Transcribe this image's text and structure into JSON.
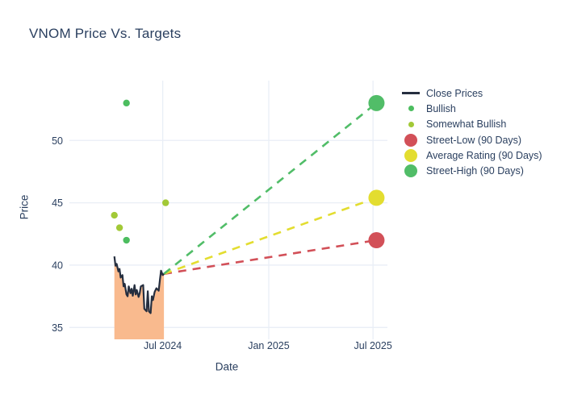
{
  "chart_data": {
    "type": "line+scatter",
    "title": "VNOM Price Vs. Targets",
    "xlabel": "Date",
    "ylabel": "Price",
    "background": "#ffffff",
    "text_color": "#2a3f5f",
    "grid_color": "#e9eef6",
    "grid": true,
    "legend_position": "right",
    "x_ticks": [
      {
        "label": "Jul 2024",
        "date": "2024-07-01"
      },
      {
        "label": "Jan 2025",
        "date": "2025-01-01"
      },
      {
        "label": "Jul 2025",
        "date": "2025-07-01"
      }
    ],
    "y_ticks": [
      35,
      40,
      45,
      50
    ],
    "x_range": [
      "2024-01-21",
      "2025-07-26"
    ],
    "y_range": [
      34.05,
      54.8
    ],
    "close_prices": {
      "name": "Close Prices",
      "line_color": "#252e3f",
      "fill_color": "#f9ba8e",
      "dates": [
        "2024-04-08",
        "2024-04-10",
        "2024-04-12",
        "2024-04-15",
        "2024-04-17",
        "2024-04-19",
        "2024-04-22",
        "2024-04-24",
        "2024-04-26",
        "2024-04-29",
        "2024-05-01",
        "2024-05-03",
        "2024-05-06",
        "2024-05-08",
        "2024-05-10",
        "2024-05-13",
        "2024-05-15",
        "2024-05-17",
        "2024-05-20",
        "2024-05-22",
        "2024-05-24",
        "2024-05-28",
        "2024-05-30",
        "2024-06-03",
        "2024-06-05",
        "2024-06-07",
        "2024-06-10",
        "2024-06-12",
        "2024-06-14",
        "2024-06-17",
        "2024-06-20",
        "2024-06-24",
        "2024-06-26",
        "2024-06-28",
        "2024-07-01",
        "2024-07-03"
      ],
      "values": [
        40.7,
        39.95,
        40.1,
        39.5,
        39.7,
        39.0,
        39.2,
        38.3,
        38.5,
        37.65,
        37.5,
        38.3,
        37.75,
        38.1,
        37.55,
        38.4,
        37.65,
        38.0,
        37.45,
        37.75,
        38.3,
        38.4,
        36.5,
        36.3,
        37.9,
        36.3,
        36.15,
        37.5,
        37.2,
        37.85,
        38.15,
        37.95,
        38.8,
        39.55,
        39.2,
        39.3
      ]
    },
    "ratings": [
      {
        "label": "Somewhat Bullish",
        "date": "2024-04-08",
        "value": 44,
        "color": "#a2c937"
      },
      {
        "label": "Somewhat Bullish",
        "date": "2024-04-17",
        "value": 43,
        "color": "#a2c937"
      },
      {
        "label": "Bullish",
        "date": "2024-04-29",
        "value": 42,
        "color": "#4cbd5f"
      },
      {
        "label": "Bullish",
        "date": "2024-04-29",
        "value": 53,
        "color": "#4cbd5f"
      },
      {
        "label": "Somewhat Bullish",
        "date": "2024-07-06",
        "value": 45,
        "color": "#a2c937"
      }
    ],
    "targets": [
      {
        "label": "Street-Low (90 Days)",
        "date": "2025-07-07",
        "value": 42.0,
        "color": "#d25058"
      },
      {
        "label": "Average Rating (90 Days)",
        "date": "2025-07-07",
        "value": 45.4,
        "color": "#e3dd30"
      },
      {
        "label": "Street-High (90 Days)",
        "date": "2025-07-07",
        "value": 53.0,
        "color": "#51bd68"
      }
    ],
    "legend": [
      {
        "label": "Close Prices",
        "marker": "line",
        "color": "#252e3f"
      },
      {
        "label": "Bullish",
        "marker": "dot-small",
        "color": "#4cbd5f"
      },
      {
        "label": "Somewhat Bullish",
        "marker": "dot-small",
        "color": "#a2c937"
      },
      {
        "label": "Street-Low (90 Days)",
        "marker": "dot-big",
        "color": "#d25058"
      },
      {
        "label": "Average Rating (90 Days)",
        "marker": "dot-big",
        "color": "#e3dd30"
      },
      {
        "label": "Street-High (90 Days)",
        "marker": "dot-big",
        "color": "#51bd68"
      }
    ]
  }
}
